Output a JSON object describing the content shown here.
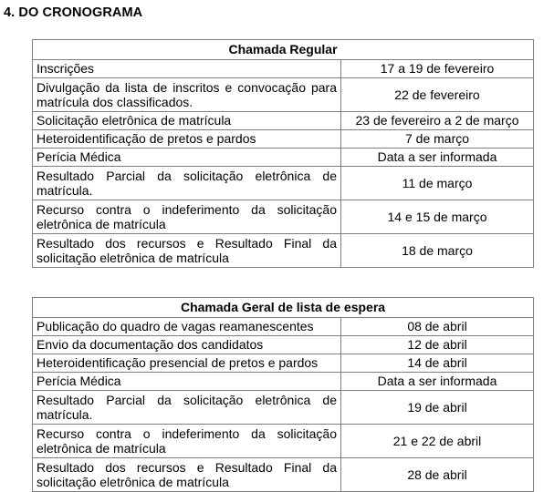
{
  "page": {
    "title": "4. DO CRONOGRAMA"
  },
  "colors": {
    "text": "#000000",
    "border": "#7f7f7f",
    "background": "#ffffff"
  },
  "tables": [
    {
      "header": "Chamada Regular",
      "rows": [
        {
          "event": "Inscrições",
          "date": "17 a 19 de fevereiro"
        },
        {
          "event": "Divulgação da lista de inscritos e convocação para matrícula dos classificados.",
          "date": "22 de fevereiro"
        },
        {
          "event": "Solicitação eletrônica de matrícula",
          "date": "23 de fevereiro a 2 de março"
        },
        {
          "event": "Heteroidentificação de pretos e pardos",
          "date": "7 de março"
        },
        {
          "event": "Perícia Médica",
          "date": "Data a ser informada"
        },
        {
          "event": "Resultado Parcial da solicitação eletrônica de matrícula.",
          "date": "11 de março"
        },
        {
          "event": "Recurso contra o indeferimento da solicitação eletrônica de matrícula",
          "date": "14 e 15 de março"
        },
        {
          "event": "Resultado dos recursos e Resultado Final da solicitação eletrônica de matrícula",
          "date": "18 de março"
        }
      ]
    },
    {
      "header": "Chamada Geral de lista de espera",
      "rows": [
        {
          "event": "Publicação do quadro de vagas reamanescentes",
          "date": "08 de abril"
        },
        {
          "event": "Envio da documentação dos candidatos",
          "date": "12 de abril"
        },
        {
          "event": "Heteroidentificação presencial de pretos e pardos",
          "date": "14 de abril"
        },
        {
          "event": "Perícia Médica",
          "date": "Data a ser informada"
        },
        {
          "event": "Resultado Parcial da solicitação eletrônica de matrícula.",
          "date": "19 de abril"
        },
        {
          "event": "Recurso contra o indeferimento da solicitação eletrônica de matrícula",
          "date": "21 e 22 de abril"
        },
        {
          "event": "Resultado dos recursos e Resultado Final da solicitação eletrônica de matrícula",
          "date": "28 de abril"
        }
      ]
    }
  ]
}
